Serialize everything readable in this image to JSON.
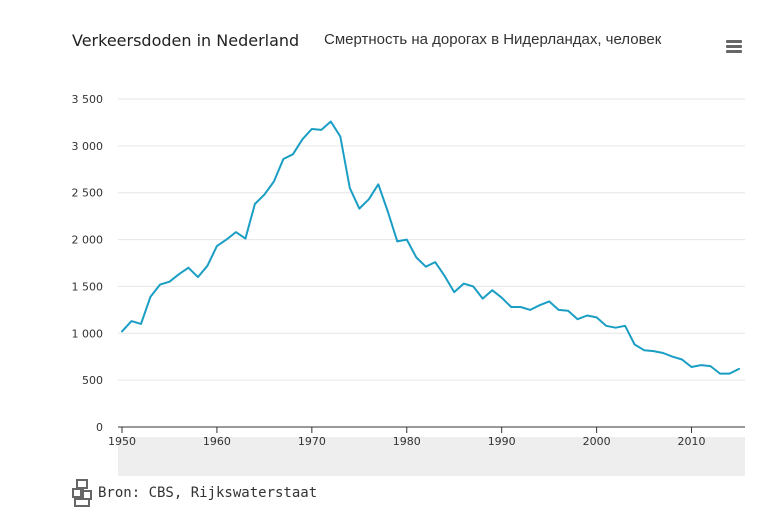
{
  "header": {
    "title": "Verkeersdoden in Nederland",
    "subtitle": "Смертность на дорогах в Нидерландах, человек",
    "menu_icon": "hamburger-menu-icon"
  },
  "source": {
    "text": "Bron: CBS, Rijkswaterstaat",
    "logo_icon": "cbs-logo-icon"
  },
  "colors": {
    "line": "#1a9ec4",
    "grid": "#e6e6e6",
    "navigator_band": "#eeeeee",
    "axis": "#333333"
  },
  "chart_data": {
    "type": "line",
    "title": "Verkeersdoden in Nederland",
    "subtitle": "Смертность на дорогах в Нидерландах, человек",
    "xlabel": "",
    "ylabel": "",
    "xlim": [
      1950,
      2015
    ],
    "ylim": [
      0,
      3500
    ],
    "grid": true,
    "x_ticks": [
      1950,
      1960,
      1970,
      1980,
      1990,
      2000,
      2010
    ],
    "y_ticks": [
      0,
      500,
      1000,
      1500,
      2000,
      2500,
      3000,
      3500
    ],
    "y_tick_labels": [
      "0",
      "500",
      "1 000",
      "1 500",
      "2 000",
      "2 500",
      "3 000",
      "3 500"
    ],
    "series": [
      {
        "x": [
          1950,
          1951,
          1952,
          1953,
          1954,
          1955,
          1956,
          1957,
          1958,
          1959,
          1960,
          1961,
          1962,
          1963,
          1964,
          1965,
          1966,
          1967,
          1968,
          1969,
          1970,
          1971,
          1972,
          1973,
          1974,
          1975,
          1976,
          1977,
          1978,
          1979,
          1980,
          1981,
          1982,
          1983,
          1984,
          1985,
          1986,
          1987,
          1988,
          1989,
          1990,
          1991,
          1992,
          1993,
          1994,
          1995,
          1996,
          1997,
          1998,
          1999,
          2000,
          2001,
          2002,
          2003,
          2004,
          2005,
          2006,
          2007,
          2008,
          2009,
          2010,
          2011,
          2012,
          2013,
          2014,
          2015
        ],
        "values": [
          1020,
          1130,
          1100,
          1390,
          1520,
          1550,
          1630,
          1700,
          1600,
          1720,
          1930,
          2000,
          2080,
          2010,
          2380,
          2480,
          2620,
          2860,
          2910,
          3070,
          3180,
          3170,
          3260,
          3100,
          2550,
          2330,
          2430,
          2590,
          2300,
          1980,
          2000,
          1810,
          1710,
          1760,
          1610,
          1440,
          1530,
          1500,
          1370,
          1460,
          1380,
          1280,
          1280,
          1250,
          1300,
          1340,
          1250,
          1240,
          1150,
          1190,
          1170,
          1080,
          1060,
          1080,
          880,
          820,
          810,
          790,
          750,
          720,
          640,
          660,
          650,
          570,
          570,
          620
        ]
      }
    ]
  }
}
